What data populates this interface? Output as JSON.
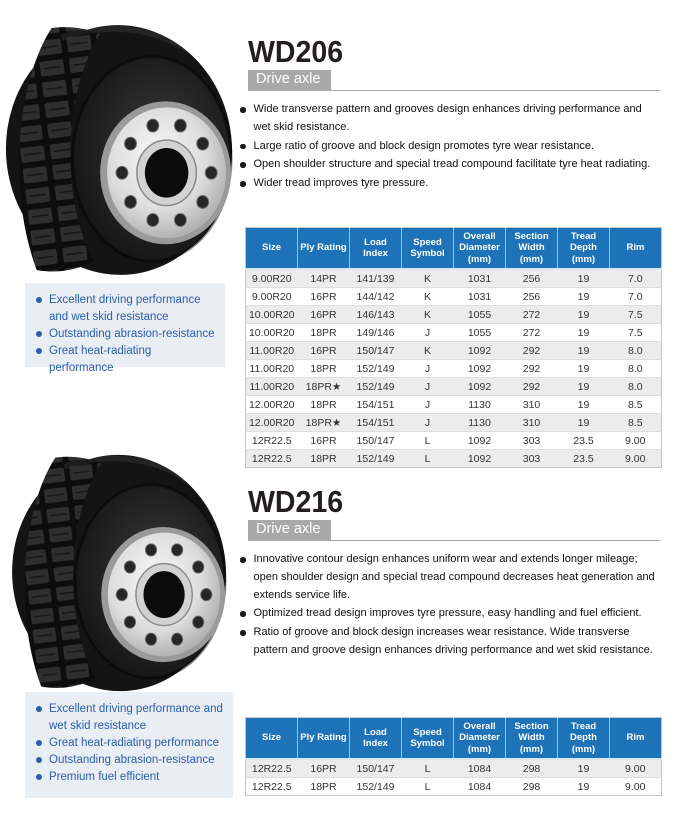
{
  "sections": [
    {
      "model": "WD206",
      "category": "Drive axle",
      "features": [
        "Wide transverse pattern and grooves design enhances driving performance and wet skid resistance.",
        "Large ratio of groove and block design promotes tyre wear resistance.",
        "Open shoulder structure and special tread compound facilitate tyre heat radiating.",
        "Wider tread improves tyre pressure."
      ],
      "highlights": [
        "Excellent driving performance and wet skid resistance",
        "Outstanding abrasion-resistance",
        "Great heat-radiating performance"
      ],
      "table": {
        "columns": [
          "Size",
          "Ply Rating",
          "Load\nIndex",
          "Speed\nSymbol",
          "Overall\nDiameter\n(mm)",
          "Section\nWidth\n(mm)",
          "Tread\nDepth\n(mm)",
          "Rim"
        ],
        "rows": [
          [
            "9.00R20",
            "14PR",
            "141/139",
            "K",
            "1031",
            "256",
            "19",
            "7.0"
          ],
          [
            "9.00R20",
            "16PR",
            "144/142",
            "K",
            "1031",
            "256",
            "19",
            "7.0"
          ],
          [
            "10.00R20",
            "16PR",
            "146/143",
            "K",
            "1055",
            "272",
            "19",
            "7.5"
          ],
          [
            "10.00R20",
            "18PR",
            "149/146",
            "J",
            "1055",
            "272",
            "19",
            "7.5"
          ],
          [
            "11.00R20",
            "16PR",
            "150/147",
            "K",
            "1092",
            "292",
            "19",
            "8.0"
          ],
          [
            "11.00R20",
            "18PR",
            "152/149",
            "J",
            "1092",
            "292",
            "19",
            "8.0"
          ],
          [
            "11.00R20",
            "18PR★",
            "152/149",
            "J",
            "1092",
            "292",
            "19",
            "8.0"
          ],
          [
            "12.00R20",
            "18PR",
            "154/151",
            "J",
            "1130",
            "310",
            "19",
            "8.5"
          ],
          [
            "12.00R20",
            "18PR★",
            "154/151",
            "J",
            "1130",
            "310",
            "19",
            "8.5"
          ],
          [
            "12R22.5",
            "16PR",
            "150/147",
            "L",
            "1092",
            "303",
            "23.5",
            "9.00"
          ],
          [
            "12R22.5",
            "18PR",
            "152/149",
            "L",
            "1092",
            "303",
            "23.5",
            "9.00"
          ]
        ]
      }
    },
    {
      "model": "WD216",
      "category": "Drive axle",
      "features": [
        "Innovative contour design enhances uniform wear and extends longer mileage; open shoulder design and special tread compound decreases heat generation and extends service life.",
        "Optimized tread design improves tyre pressure, easy handling and fuel efficient.",
        "Ratio of groove and block design increases wear resistance. Wide transverse pattern and groove design enhances driving performance and wet skid resistance."
      ],
      "highlights": [
        "Excellent driving performance and wet skid resistance",
        "Great heat-radiating performance",
        "Outstanding abrasion-resistance",
        "Premium fuel efficient"
      ],
      "table": {
        "columns": [
          "Size",
          "Ply Rating",
          "Load\nIndex",
          "Speed\nSymbol",
          "Overall\nDiameter\n(mm)",
          "Section\nWidth\n(mm)",
          "Tread\nDepth\n(mm)",
          "Rim"
        ],
        "rows": [
          [
            "12R22.5",
            "16PR",
            "150/147",
            "L",
            "1084",
            "298",
            "19",
            "9.00"
          ],
          [
            "12R22.5",
            "18PR",
            "152/149",
            "L",
            "1084",
            "298",
            "19",
            "9.00"
          ]
        ]
      }
    }
  ],
  "colors": {
    "table_header_blue": "#1e73b8",
    "badge_gray": "#a9a9a9",
    "row_stripe_gray": "#ececec",
    "highlight_panel_bg": "#e9edf4",
    "highlight_text_blue": "#2a5fa8",
    "title_black": "#231f20"
  }
}
